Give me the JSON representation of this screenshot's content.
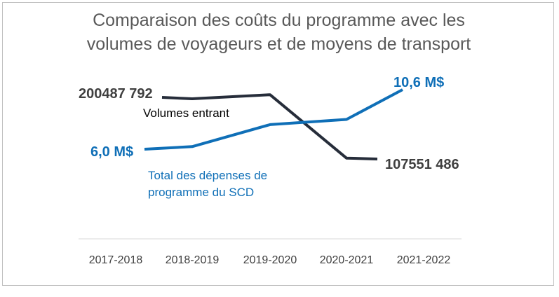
{
  "chart_data": {
    "type": "line",
    "title_lines": [
      "Comparaison des coûts du programme avec les",
      "volumes de voyageurs et de moyens de transport"
    ],
    "categories": [
      "2017-2018",
      "2018-2019",
      "2019-2020",
      "2020-2021",
      "2021-2022"
    ],
    "series": [
      {
        "name": "Volumes entrant",
        "color": "#262d3a",
        "values": [
          200487792,
          198400000,
          204500000,
          108900000,
          107551486
        ],
        "start_label": "200487 792",
        "end_label": "107551 486"
      },
      {
        "name_lines": [
          "Total des dépenses de",
          "programme du SCD"
        ],
        "color": "#0f6fb7",
        "values": [
          6.0,
          6.2,
          7.9,
          8.3,
          10.6
        ],
        "start_label": "6,0 M$",
        "end_label": "10,6 M$"
      }
    ],
    "grid": false,
    "legend": "inline labels"
  }
}
